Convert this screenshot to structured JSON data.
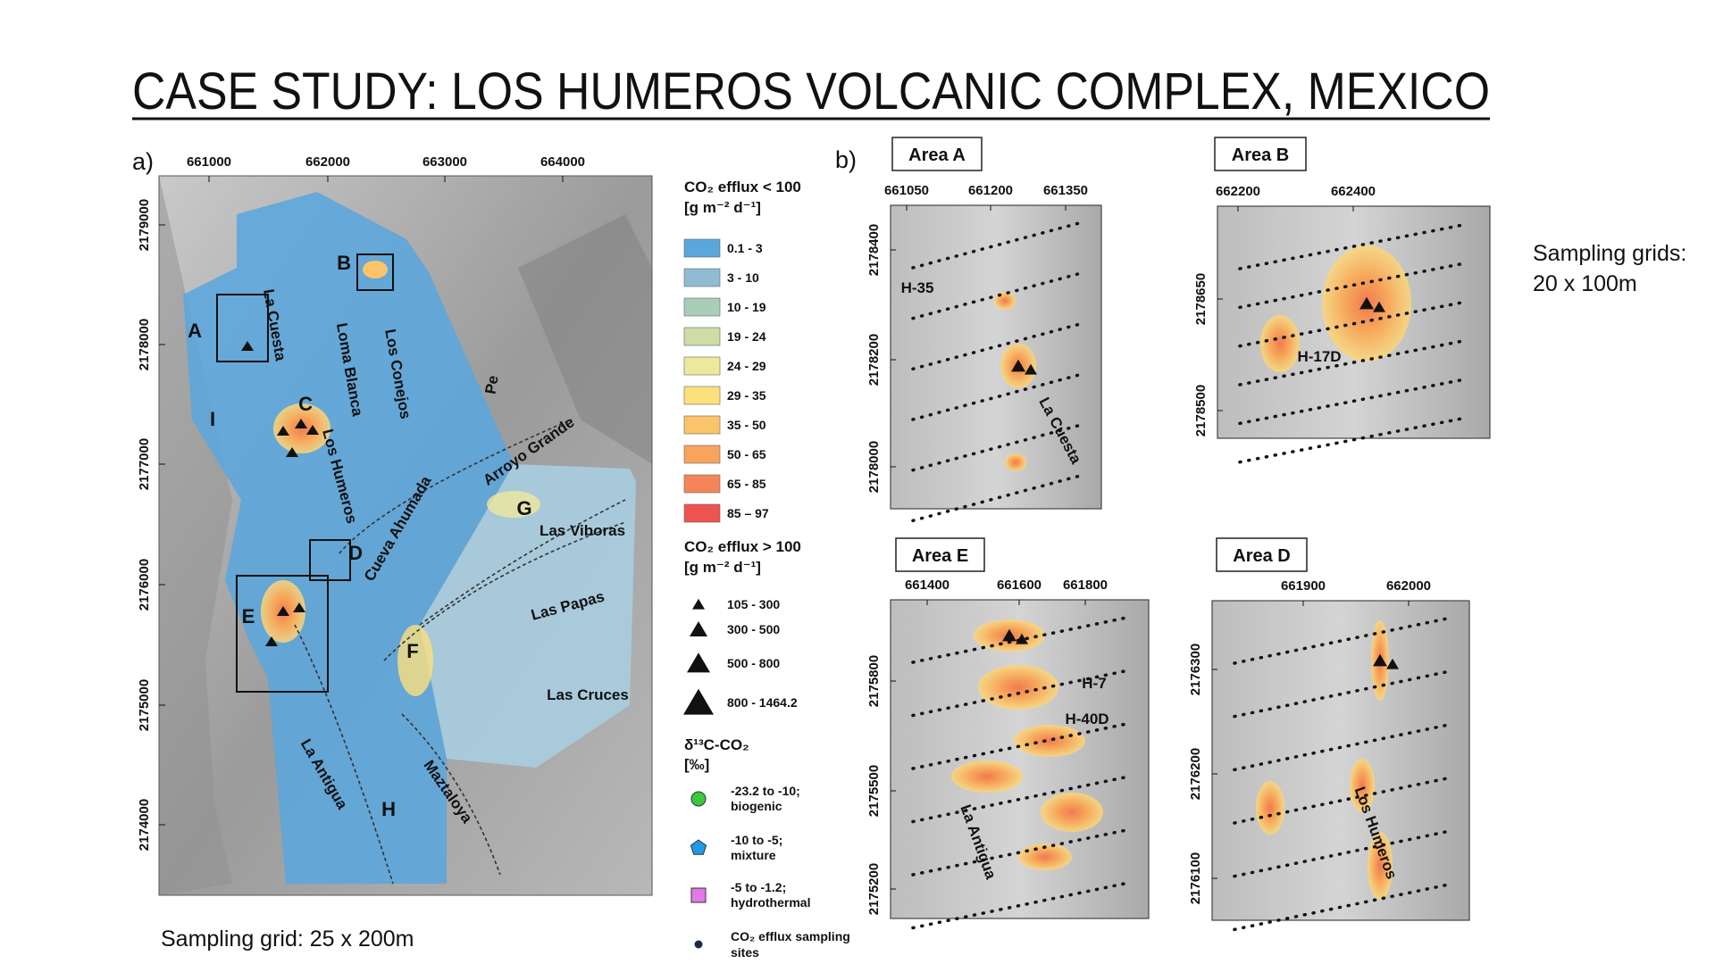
{
  "title": "CASE STUDY: LOS HUMEROS VOLCANIC COMPLEX, MEXICO",
  "panel_a": {
    "label": "a)",
    "x_ticks": [
      661000,
      662000,
      663000,
      664000
    ],
    "y_ticks": [
      2179000,
      2178000,
      2177000,
      2176000,
      2175000,
      2174000
    ],
    "places": [
      "A",
      "B",
      "C",
      "D",
      "E",
      "F",
      "G",
      "H",
      "I",
      "La Cuesta",
      "Loma Blanca",
      "Los Conejos",
      "Los Humeros",
      "Cueva Ahumada",
      "Arroyo Grande",
      "Las Viboras",
      "Las Papas",
      "Las Cruces",
      "La Antigua",
      "Maztaloya",
      "Pe"
    ]
  },
  "legend": {
    "low_title": "CO₂ efflux < 100",
    "low_unit": "[g m⁻² d⁻¹]",
    "low_classes": [
      {
        "label": "0.1 - 3",
        "color": "#5ba6dc"
      },
      {
        "label": "3 - 10",
        "color": "#8fbcd2"
      },
      {
        "label": "10 - 19",
        "color": "#a9cdb9"
      },
      {
        "label": "19 - 24",
        "color": "#cfdca6"
      },
      {
        "label": "24 - 29",
        "color": "#ede99c"
      },
      {
        "label": "29 - 35",
        "color": "#fbe07e"
      },
      {
        "label": "35 - 50",
        "color": "#fbc46a"
      },
      {
        "label": "50 - 65",
        "color": "#f8a45c"
      },
      {
        "label": "65 - 85",
        "color": "#f68459"
      },
      {
        "label": "85 – 97",
        "color": "#ef5350"
      }
    ],
    "high_title": "CO₂ efflux > 100",
    "high_unit": "[g m⁻² d⁻¹]",
    "high_classes": [
      "105 - 300",
      "300 - 500",
      "500 - 800",
      "800 - 1464.2"
    ],
    "isotope_title": "δ¹³C-CO₂",
    "isotope_unit": "[‰]",
    "isotope_classes": [
      {
        "label": "-23.2 to -10;",
        "desc": "biogenic",
        "color": "#3cc83c"
      },
      {
        "label": "-10 to -5;",
        "desc": "mixture",
        "color": "#1e9be6"
      },
      {
        "label": "-5 to -1.2;",
        "desc": "hydrothermal",
        "color": "#e07ae6"
      }
    ],
    "sites": [
      "CO₂ efflux sampling",
      "sites"
    ]
  },
  "caption_a": "Sampling grid: 25 x 200m",
  "panel_b": {
    "label": "b)",
    "areas": [
      {
        "title": "Area A",
        "x_ticks": [
          661050,
          661200,
          661350
        ],
        "y_ticks": [
          2178400,
          2178200,
          2178000
        ],
        "places": [
          "H-35",
          "La Cuesta"
        ]
      },
      {
        "title": "Area B",
        "x_ticks": [
          662200,
          662400
        ],
        "y_ticks": [
          2178650,
          2178500
        ],
        "places": [
          "H-17D"
        ]
      },
      {
        "title": "Area E",
        "x_ticks": [
          661400,
          661600,
          661800
        ],
        "y_ticks": [
          2175800,
          2175500,
          2175200
        ],
        "places": [
          "H-7",
          "H-40D",
          "La Antigua"
        ]
      },
      {
        "title": "Area D",
        "x_ticks": [
          661900,
          662000
        ],
        "y_ticks": [
          2176300,
          2176200,
          2176100
        ],
        "places": [
          "Los Humeros"
        ]
      }
    ]
  },
  "note": [
    "Sampling grids:",
    "20 x 100m"
  ]
}
